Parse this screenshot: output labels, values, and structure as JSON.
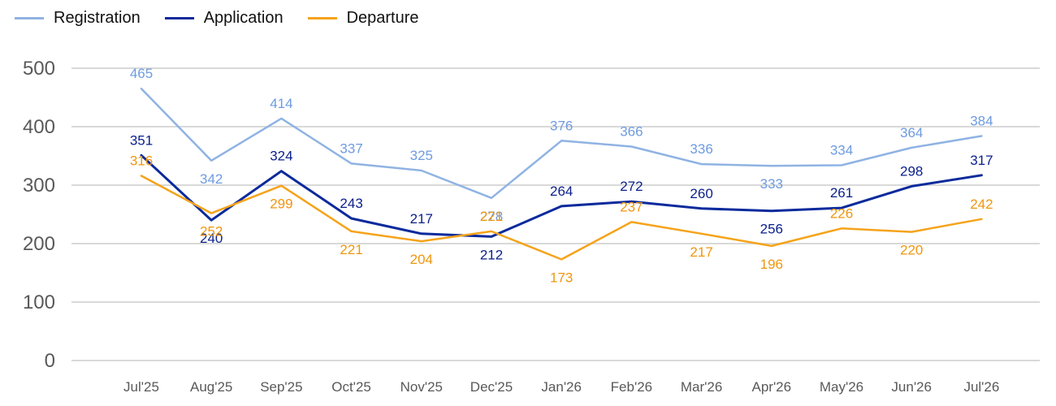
{
  "chart_data": {
    "type": "line",
    "categories": [
      "Jul'25",
      "Aug'25",
      "Sep'25",
      "Oct'25",
      "Nov'25",
      "Dec'25",
      "Jan'26",
      "Feb'26",
      "Mar'26",
      "Apr'26",
      "May'26",
      "Jun'26",
      "Jul'26"
    ],
    "ylim": [
      0,
      500
    ],
    "yticks": [
      0,
      100,
      200,
      300,
      400,
      500
    ],
    "grid": true,
    "legend_position": "top-left",
    "series": [
      {
        "name": "Registration",
        "color": "#8FB3E3",
        "label_color": "#6E9BE0",
        "values": [
          465,
          342,
          414,
          337,
          325,
          278,
          376,
          366,
          336,
          333,
          334,
          364,
          384
        ]
      },
      {
        "name": "Application",
        "color": "#0A2A9C",
        "label_color": "#0A1F8A",
        "values": [
          351,
          240,
          324,
          243,
          217,
          212,
          264,
          272,
          260,
          256,
          261,
          298,
          317
        ]
      },
      {
        "name": "Departure",
        "color": "#F5A31A",
        "label_color": "#F0960E",
        "values": [
          316,
          252,
          299,
          221,
          204,
          221,
          173,
          237,
          217,
          196,
          226,
          220,
          242
        ]
      }
    ]
  }
}
